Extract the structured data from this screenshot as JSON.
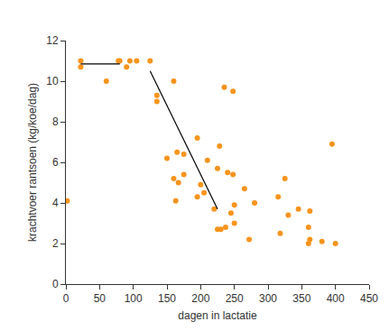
{
  "chart_data": {
    "type": "scatter",
    "x_label": "dagen in lactatie",
    "y_label": "krachtvoer rantsoen (kg/koe/dag)",
    "xlim": [
      0,
      450
    ],
    "xticks": [
      0,
      50,
      100,
      150,
      200,
      250,
      300,
      350,
      400,
      450
    ],
    "ylim": [
      0,
      12
    ],
    "yticks": [
      0,
      2,
      4,
      6,
      8,
      10,
      12
    ],
    "grid": false,
    "series": [
      {
        "type": "scatter",
        "marker": "circle",
        "color": "#f7941d",
        "x": [
          2,
          22,
          22,
          60,
          78,
          80,
          90,
          95,
          105,
          125,
          135,
          135,
          150,
          160,
          160,
          163,
          165,
          167,
          175,
          175,
          195,
          195,
          200,
          205,
          210,
          220,
          225,
          230,
          225,
          228,
          235,
          237,
          240,
          245,
          248,
          248,
          250,
          250,
          265,
          272,
          280,
          315,
          318,
          325,
          330,
          345,
          360,
          360,
          362,
          362,
          380,
          395,
          400
        ],
        "values": [
          4.1,
          11.0,
          10.7,
          10.0,
          11.0,
          11.0,
          10.7,
          11.0,
          11.0,
          11.0,
          9.3,
          9.0,
          6.2,
          10.0,
          5.2,
          4.1,
          6.5,
          5.0,
          6.4,
          5.4,
          7.2,
          4.3,
          4.9,
          4.5,
          6.1,
          3.7,
          2.7,
          2.7,
          5.7,
          6.8,
          9.7,
          2.8,
          5.5,
          3.5,
          5.4,
          9.5,
          3.9,
          3.0,
          4.7,
          2.2,
          4.0,
          4.3,
          2.5,
          5.2,
          3.4,
          3.7,
          2.8,
          2.0,
          3.6,
          2.2,
          2.1,
          6.9,
          2.0
        ]
      },
      {
        "type": "line",
        "line_style": "solid",
        "color": "#000000",
        "x": [
          22,
          80
        ],
        "values": [
          10.85,
          10.85
        ]
      },
      {
        "type": "line",
        "line_style": "solid",
        "color": "#000000",
        "x": [
          125,
          225
        ],
        "values": [
          10.5,
          3.7
        ]
      }
    ]
  }
}
